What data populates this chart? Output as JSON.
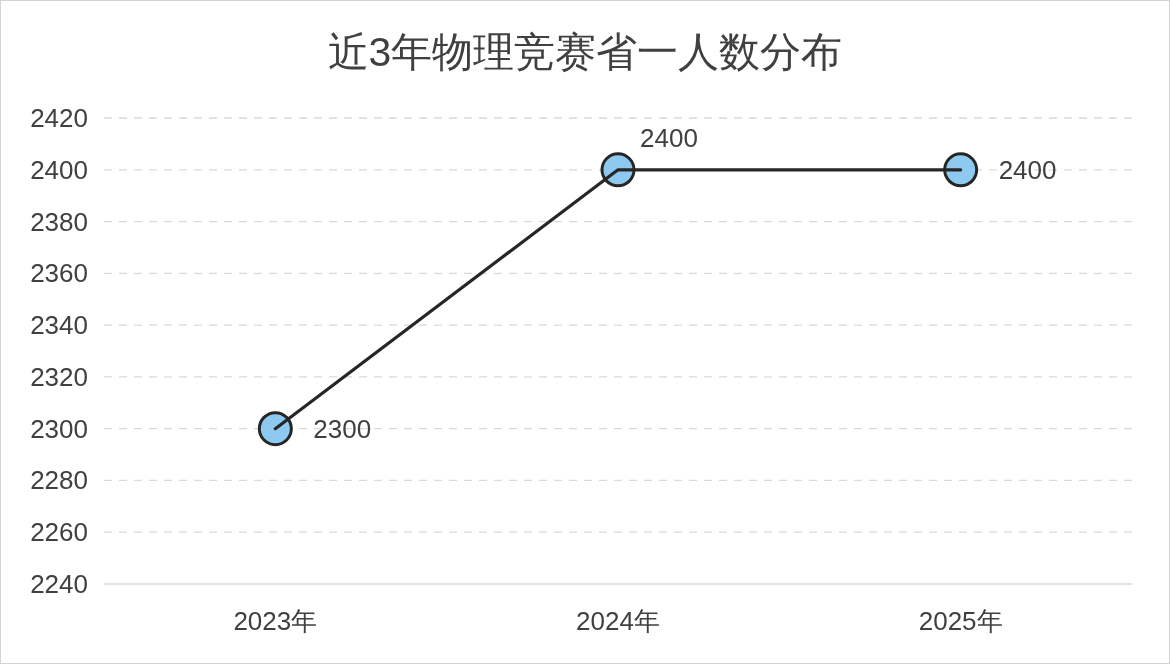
{
  "chart_data": {
    "type": "line",
    "title": "近3年物理竞赛省一人数分布",
    "categories": [
      "2023年",
      "2024年",
      "2025年"
    ],
    "series": [
      {
        "color": "#262626",
        "colors": [
          "#8ecaef",
          "#8ecaef",
          "#8ecaef"
        ],
        "values": [
          2300,
          2400,
          2400
        ]
      }
    ],
    "ylim": [
      2240,
      2420
    ],
    "yticks": [
      2240,
      2260,
      2280,
      2300,
      2320,
      2340,
      2360,
      2380,
      2400,
      2420
    ],
    "grid": "y",
    "marker": "circle",
    "line_style": "solid",
    "data_labels": true
  }
}
